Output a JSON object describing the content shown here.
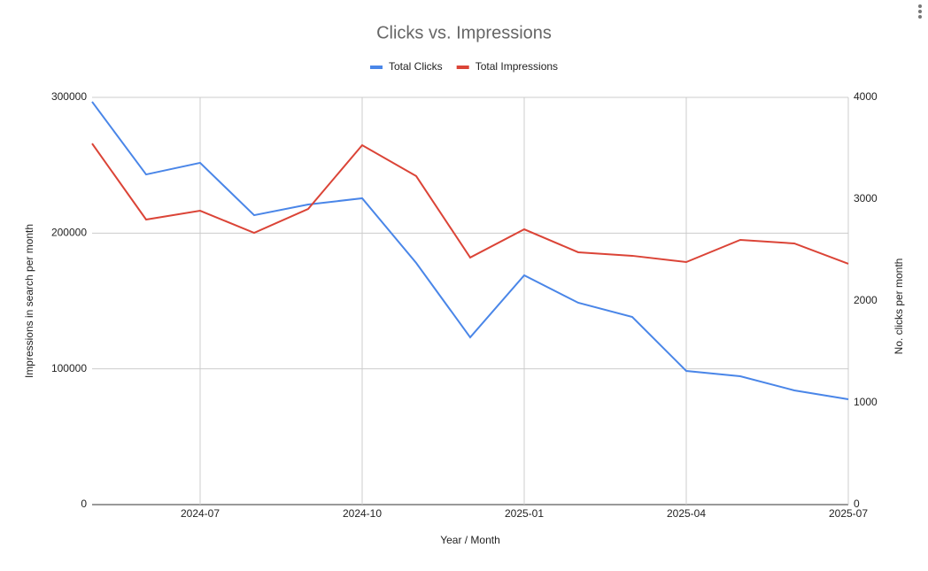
{
  "chart_data": {
    "type": "line",
    "title": "Clicks vs. Impressions",
    "x_label": "Year / Month",
    "y_label": "Impressions in search per month",
    "y2_label": "No. clicks per month",
    "x": [
      "2024-05",
      "2024-06",
      "2024-07",
      "2024-08",
      "2024-09",
      "2024-10",
      "2024-11",
      "2024-12",
      "2025-01",
      "2025-02",
      "2025-03",
      "2025-04",
      "2025-05",
      "2025-06",
      "2025-07"
    ],
    "xlim": [
      "2024-05",
      "2025-07"
    ],
    "xticks": [
      "2024-07",
      "2024-10",
      "2025-01",
      "2025-04",
      "2025-07"
    ],
    "ylim": [
      0,
      300000
    ],
    "yticks": [
      0,
      100000,
      200000,
      300000
    ],
    "y2lim": [
      0,
      4000
    ],
    "y2ticks": [
      0,
      1000,
      2000,
      3000,
      4000
    ],
    "grid": true,
    "legend": "top",
    "series": [
      {
        "name": "Total Clicks",
        "color": "#4a86e8",
        "axis": "y2",
        "values": [
          3957,
          3243,
          3357,
          2843,
          2948,
          3009,
          2374,
          1643,
          2252,
          1983,
          1843,
          1313,
          1261,
          1122,
          1035
        ]
      },
      {
        "name": "Total Impressions",
        "color": "#db4437",
        "axis": "y",
        "values": [
          266000,
          210000,
          216500,
          200200,
          217800,
          264800,
          242000,
          182000,
          202800,
          185900,
          183300,
          178700,
          195000,
          192400,
          177400
        ]
      }
    ]
  }
}
